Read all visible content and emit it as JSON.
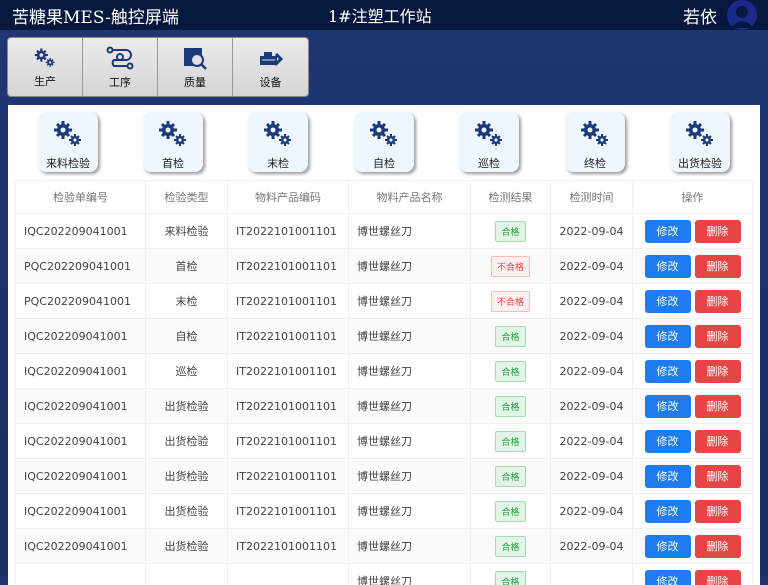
{
  "header": {
    "app_title": "苦糖果MES-触控屏端",
    "station": "1#注塑工作站",
    "user": "若依"
  },
  "nav": [
    {
      "label": "生产",
      "icon": "gears-icon"
    },
    {
      "label": "工序",
      "icon": "process-icon"
    },
    {
      "label": "质量",
      "icon": "quality-search-icon"
    },
    {
      "label": "设备",
      "icon": "equipment-icon"
    }
  ],
  "inspection_types": [
    "来料检验",
    "首检",
    "末检",
    "自检",
    "巡检",
    "终检",
    "出货检验"
  ],
  "table": {
    "columns": [
      "检验单编号",
      "检验类型",
      "物料产品编码",
      "物料产品名称",
      "检测结果",
      "检测时间",
      "操作"
    ],
    "edit_label": "修改",
    "delete_label": "删除",
    "rows": [
      {
        "code": "IQC202209041001",
        "type": "来料检验",
        "material": "IT2022101001101",
        "name": "博世螺丝刀",
        "result": "合格",
        "date": "2022-09-04"
      },
      {
        "code": "PQC202209041001",
        "type": "首检",
        "material": "IT2022101001101",
        "name": "博世螺丝刀",
        "result": "不合格",
        "date": "2022-09-04"
      },
      {
        "code": "PQC202209041001",
        "type": "末检",
        "material": "IT2022101001101",
        "name": "博世螺丝刀",
        "result": "不合格",
        "date": "2022-09-04"
      },
      {
        "code": "IQC202209041001",
        "type": "自检",
        "material": "IT2022101001101",
        "name": "博世螺丝刀",
        "result": "合格",
        "date": "2022-09-04"
      },
      {
        "code": "IQC202209041001",
        "type": "巡检",
        "material": "IT2022101001101",
        "name": "博世螺丝刀",
        "result": "合格",
        "date": "2022-09-04"
      },
      {
        "code": "IQC202209041001",
        "type": "出货检验",
        "material": "IT2022101001101",
        "name": "博世螺丝刀",
        "result": "合格",
        "date": "2022-09-04"
      },
      {
        "code": "IQC202209041001",
        "type": "出货检验",
        "material": "IT2022101001101",
        "name": "博世螺丝刀",
        "result": "合格",
        "date": "2022-09-04"
      },
      {
        "code": "IQC202209041001",
        "type": "出货检验",
        "material": "IT2022101001101",
        "name": "博世螺丝刀",
        "result": "合格",
        "date": "2022-09-04"
      },
      {
        "code": "IQC202209041001",
        "type": "出货检验",
        "material": "IT2022101001101",
        "name": "博世螺丝刀",
        "result": "合格",
        "date": "2022-09-04"
      },
      {
        "code": "IQC202209041001",
        "type": "出货检验",
        "material": "IT2022101001101",
        "name": "博世螺丝刀",
        "result": "合格",
        "date": "2022-09-04"
      },
      {
        "code": "",
        "type": "",
        "material": "",
        "name": "博世螺丝刀",
        "result": "合格",
        "date": ""
      }
    ]
  },
  "colors": {
    "pass": "#27a044",
    "fail": "#e54545",
    "edit": "#1e7cf0",
    "delete": "#e54545",
    "icon": "#1c3a7a"
  }
}
